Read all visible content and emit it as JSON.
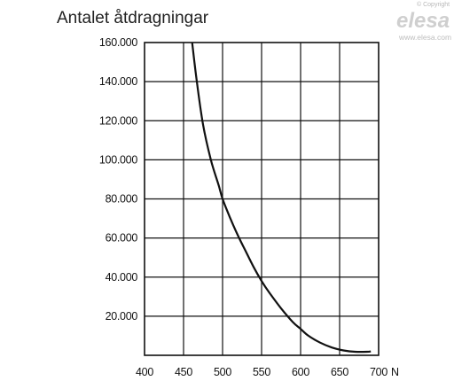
{
  "watermark": {
    "copyright": "© Copyright",
    "logo": "elesa",
    "url": "www.elesa.com"
  },
  "chart_data": {
    "type": "line",
    "title": "Antalet åtdragningar",
    "xlabel": "",
    "ylabel": "",
    "x_unit": "N",
    "xlim": [
      400,
      700
    ],
    "ylim": [
      0,
      160000
    ],
    "x_ticks": [
      400,
      450,
      500,
      550,
      600,
      650,
      700
    ],
    "x_tick_labels": [
      "400",
      "450",
      "500",
      "550",
      "600",
      "650",
      "700"
    ],
    "y_ticks": [
      20000,
      40000,
      60000,
      80000,
      100000,
      120000,
      140000,
      160000
    ],
    "y_tick_labels": [
      "20.000",
      "40.000",
      "60.000",
      "80.000",
      "100.000",
      "120.000",
      "140.000",
      "160.000"
    ],
    "grid": true,
    "series": [
      {
        "x": [
          461,
          467,
          475,
          485,
          495,
          500,
          510,
          520,
          530,
          540,
          550,
          560,
          575,
          590,
          600,
          610,
          625,
          640,
          655,
          670,
          685,
          690
        ],
        "y": [
          160000,
          140000,
          118000,
          100000,
          87000,
          80000,
          70000,
          61000,
          53000,
          45000,
          38000,
          32000,
          24000,
          17000,
          13500,
          10000,
          6500,
          4000,
          2500,
          1800,
          1800,
          2000
        ]
      }
    ]
  }
}
